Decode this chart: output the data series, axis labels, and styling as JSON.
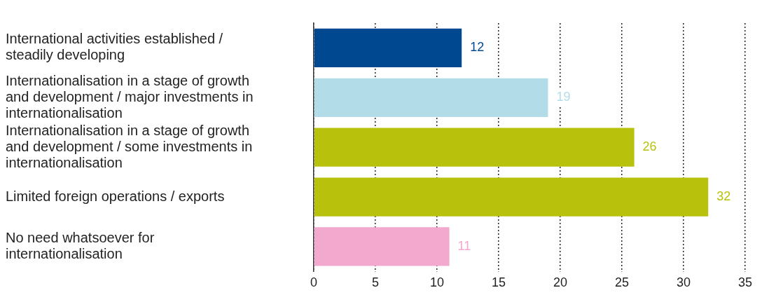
{
  "chart_data": {
    "type": "bar",
    "orientation": "horizontal",
    "categories": [
      "International activities established / steadily developing",
      "Internationalisation in a stage of growth and development / major investments in internationalisation",
      "Internationalisation in a stage of growth and development / some investments in internationalisation",
      "Limited foreign operations / exports",
      "No need whatsoever for internationalisation"
    ],
    "values": [
      12,
      19,
      26,
      32,
      11
    ],
    "colors": [
      "#004990",
      "#b2dde8",
      "#b8c20c",
      "#b8c20c",
      "#f2a9cd"
    ],
    "xlim": [
      0,
      35
    ],
    "xticks": [
      0,
      5,
      10,
      15,
      20,
      25,
      30,
      35
    ],
    "grid": "x",
    "data_labels": true,
    "legend": false
  }
}
